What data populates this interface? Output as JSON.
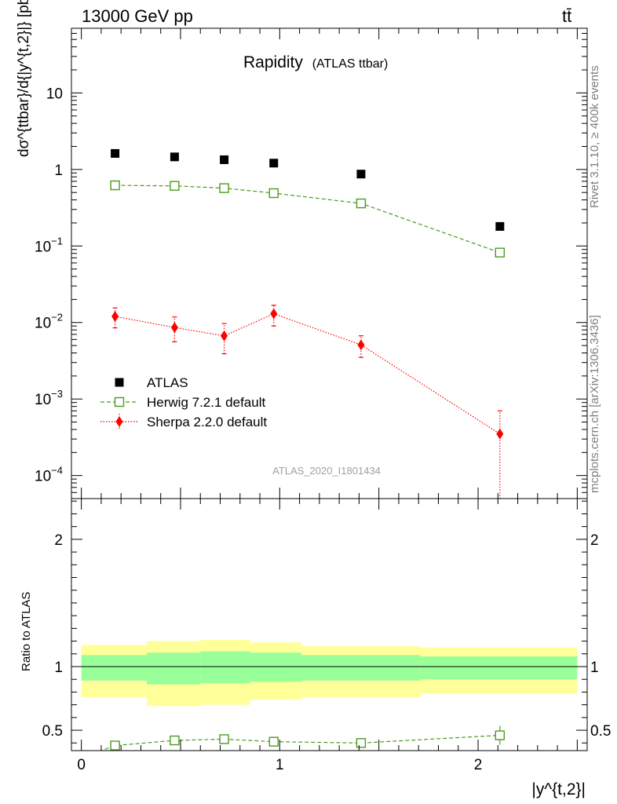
{
  "header": {
    "energy_label": "13000 GeV pp",
    "process_label": "tt̄"
  },
  "title": {
    "main": "Rapidity",
    "sub": "(ATLAS ttbar)"
  },
  "side_labels": {
    "rivet": "Rivet 3.1.10, ≥ 400k events",
    "mcplots": "mcplots.cern.ch [arXiv:1306.3436]"
  },
  "watermark": "ATLAS_2020_I1801434",
  "colors": {
    "atlas": "#000000",
    "herwig": "#4b9c1e",
    "sherpa": "#ff0000",
    "band_outer": "#ffff99",
    "band_inner": "#99ff99"
  },
  "chart_data": [
    {
      "type": "scatter",
      "panel": "main",
      "yscale": "log",
      "ylabel": "dσ^{ttbar}/d{|y^{t,2}|} [pb]",
      "xlim": [
        -0.05,
        2.55
      ],
      "ylim": [
        5e-05,
        70
      ],
      "yticks": [
        {
          "value": 0.0001,
          "label": "10",
          "exp": "−4"
        },
        {
          "value": 0.001,
          "label": "10",
          "exp": "−3"
        },
        {
          "value": 0.01,
          "label": "10",
          "exp": "−2"
        },
        {
          "value": 0.1,
          "label": "10",
          "exp": "−1"
        },
        {
          "value": 1,
          "label": "1",
          "exp": ""
        },
        {
          "value": 10,
          "label": "10",
          "exp": ""
        }
      ],
      "series": [
        {
          "name": "ATLAS",
          "style": "square-filled",
          "x": [
            0.17,
            0.47,
            0.72,
            0.97,
            1.41,
            2.11
          ],
          "y": [
            1.62,
            1.46,
            1.34,
            1.21,
            0.87,
            0.18
          ]
        },
        {
          "name": "Herwig 7.2.1 default",
          "style": "square-open-dashed",
          "x": [
            0.17,
            0.47,
            0.72,
            0.97,
            1.41,
            2.11
          ],
          "y": [
            0.62,
            0.61,
            0.57,
            0.49,
            0.36,
            0.082
          ]
        },
        {
          "name": "Sherpa 2.2.0 default",
          "style": "diamond-dotted",
          "x": [
            0.17,
            0.47,
            0.72,
            0.97,
            1.41,
            2.11
          ],
          "y": [
            0.012,
            0.0086,
            0.0067,
            0.013,
            0.0051,
            0.00035
          ],
          "yerr_low": [
            0.0035,
            0.003,
            0.0028,
            0.004,
            0.0016,
            0.00033
          ],
          "yerr_high": [
            0.0035,
            0.0032,
            0.003,
            0.0038,
            0.0016,
            0.00035
          ]
        }
      ],
      "legend": [
        {
          "label": "ATLAS",
          "style": "square-filled"
        },
        {
          "label": "Herwig 7.2.1 default",
          "style": "square-open-dashed"
        },
        {
          "label": "Sherpa 2.2.0 default",
          "style": "diamond-dotted"
        }
      ]
    },
    {
      "type": "line",
      "panel": "ratio",
      "ylabel": "Ratio to ATLAS",
      "xlabel": "|y^{t,2}|",
      "xlim": [
        -0.05,
        2.55
      ],
      "ylim": [
        0.34,
        2.32
      ],
      "yticks": [
        {
          "value": 0.5,
          "label": "0.5"
        },
        {
          "value": 1,
          "label": "1"
        },
        {
          "value": 2,
          "label": "2"
        }
      ],
      "xticks": [
        {
          "value": 0,
          "label": "0"
        },
        {
          "value": 1,
          "label": "1"
        },
        {
          "value": 2,
          "label": "2"
        }
      ],
      "bands": [
        {
          "x_low": 0.0,
          "x_high": 0.33,
          "outer": [
            0.76,
            1.17
          ],
          "inner": [
            0.89,
            1.09
          ]
        },
        {
          "x_low": 0.33,
          "x_high": 0.6,
          "outer": [
            0.69,
            1.2
          ],
          "inner": [
            0.86,
            1.11
          ]
        },
        {
          "x_low": 0.6,
          "x_high": 0.85,
          "outer": [
            0.7,
            1.21
          ],
          "inner": [
            0.87,
            1.12
          ]
        },
        {
          "x_low": 0.85,
          "x_high": 1.11,
          "outer": [
            0.74,
            1.19
          ],
          "inner": [
            0.88,
            1.11
          ]
        },
        {
          "x_low": 1.11,
          "x_high": 1.71,
          "outer": [
            0.76,
            1.16
          ],
          "inner": [
            0.89,
            1.09
          ]
        },
        {
          "x_low": 1.71,
          "x_high": 2.5,
          "outer": [
            0.79,
            1.15
          ],
          "inner": [
            0.9,
            1.08
          ]
        }
      ],
      "series": [
        {
          "name": "Herwig 7.2.1 default",
          "style": "square-open-dashed",
          "x": [
            0.17,
            0.47,
            0.72,
            0.97,
            1.41,
            2.11
          ],
          "y": [
            0.38,
            0.42,
            0.43,
            0.41,
            0.4,
            0.46
          ]
        }
      ]
    }
  ]
}
